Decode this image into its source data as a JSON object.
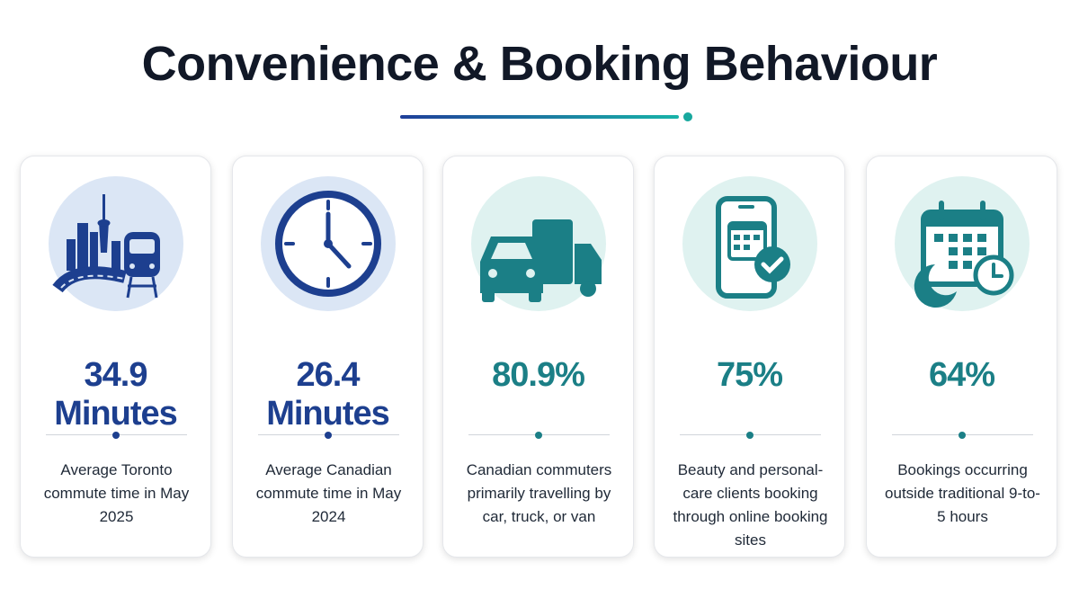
{
  "header": {
    "title": "Convenience & Booking Behaviour"
  },
  "cards": [
    {
      "stat": "34.9 Minutes",
      "description": "Average Toronto commute time in May 2025"
    },
    {
      "stat": "26.4 Minutes",
      "description": "Average Canadian commute time in May 2024"
    },
    {
      "stat": "80.9%",
      "description": "Canadian commuters primarily travelling by car, truck, or van"
    },
    {
      "stat": "75%",
      "description": "Beauty and personal-care clients booking through online booking sites"
    },
    {
      "stat": "64%",
      "description": "Bookings occurring outside traditional 9-to-5 hours"
    }
  ]
}
